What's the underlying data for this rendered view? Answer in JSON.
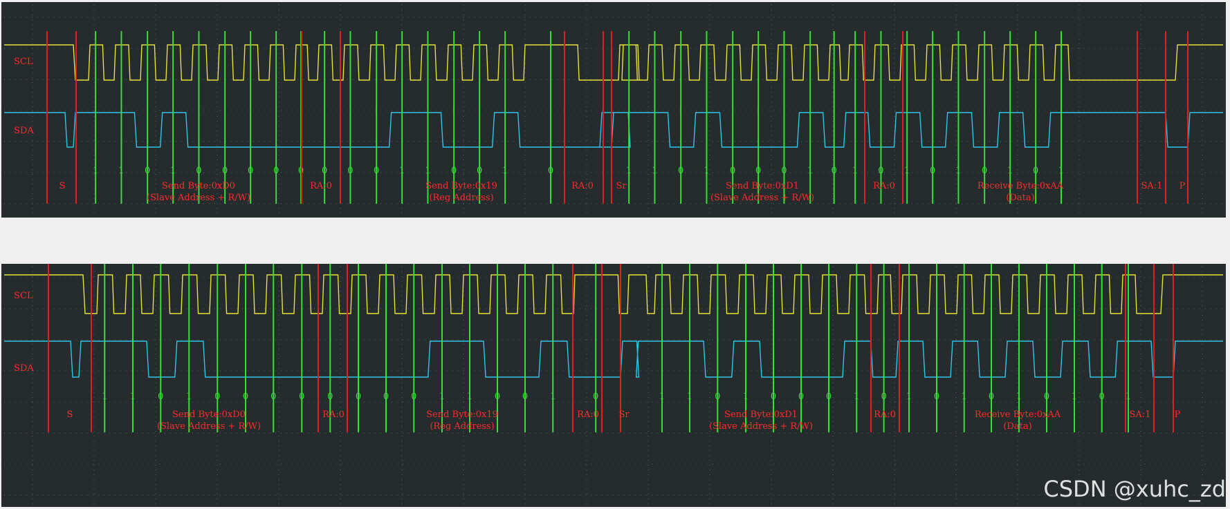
{
  "channels": {
    "clock": "SCL",
    "data": "SDA"
  },
  "colors": {
    "background": "#262c2e",
    "page": "#efefef",
    "scl": "#e6e23a",
    "sda": "#2ec6e8",
    "sample_marker": "#35e035",
    "boundary_marker": "#e02020",
    "bit_text": "#35e035",
    "label_text": "#ff2a2a",
    "grid": "#3f6f66"
  },
  "frames": {
    "start": "S",
    "repeated_start": "Sr",
    "stop": "P",
    "ack_1": "RA:0",
    "ack_2": "RA:0",
    "ack_3": "RA:0",
    "nack": "SA:1",
    "byte_1": {
      "title": "Send Byte:0xD0",
      "subtitle": "(Slave Address + R/W)",
      "bits": [
        "1",
        "1",
        "0",
        "1",
        "0",
        "0",
        "0",
        "0"
      ]
    },
    "byte_2": {
      "title": "Send Byte:0x19",
      "subtitle": "(Reg Address)",
      "bits": [
        "0",
        "0",
        "0",
        "1",
        "1",
        "0",
        "0",
        "1"
      ]
    },
    "byte_3": {
      "title": "Send Byte:0xD1",
      "subtitle": "(Slave Address + R/W)",
      "bits": [
        "1",
        "1",
        "0",
        "1",
        "0",
        "0",
        "0",
        "1"
      ]
    },
    "byte_4": {
      "title": "Receive Byte:0xAA",
      "subtitle": "(Data)",
      "bits": [
        "1",
        "0",
        "1",
        "0",
        "1",
        "0",
        "1",
        "0"
      ]
    },
    "ack_bits": [
      "0",
      "0",
      "0"
    ],
    "nack_bit": "1"
  },
  "watermark": "CSDN @xuhc_zd"
}
